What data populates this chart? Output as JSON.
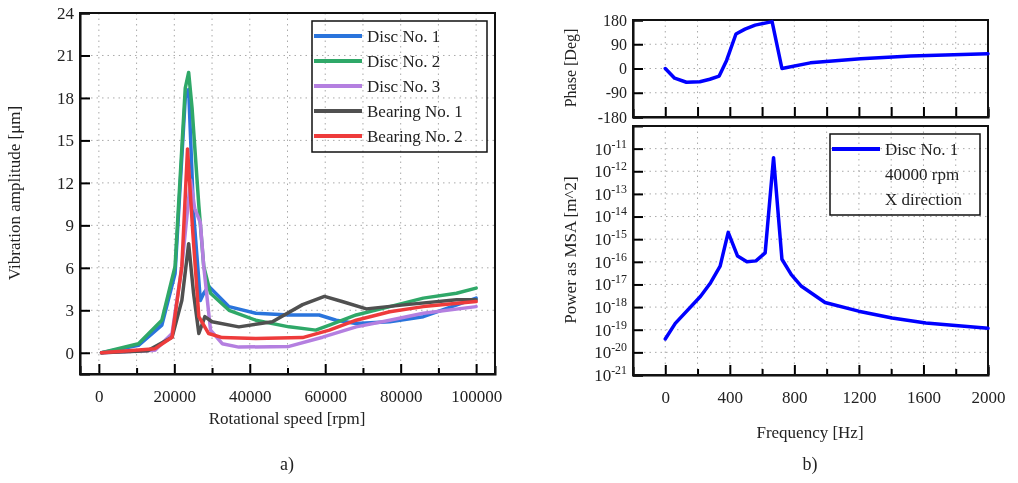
{
  "chart_data": [
    {
      "type": "line",
      "xlabel": "Rotational speed [rpm]",
      "ylabel": "Vibration amplitude [μm]",
      "annotations": [
        "a)"
      ],
      "xlim": [
        -5000,
        105000
      ],
      "ylim": [
        -1.5,
        24
      ],
      "xticks": [
        0,
        {
          "value": 10000,
          "label": null
        },
        20000,
        {
          "value": 30000,
          "label": null
        },
        40000,
        {
          "value": 50000,
          "label": null
        },
        60000,
        {
          "value": 70000,
          "label": null
        },
        80000,
        {
          "value": 90000,
          "label": null
        },
        100000
      ],
      "yticks": [
        0,
        3,
        6,
        9,
        12,
        15,
        18,
        21,
        24
      ],
      "grid": true,
      "legend": "top right",
      "line_style": "solid",
      "series": [
        {
          "name": "Disc No. 1",
          "color": "#2a74dc",
          "x": [
            700,
            10500,
            16700,
            20200,
            22900,
            23800,
            25100,
            26900,
            27800,
            29100,
            34500,
            41600,
            50400,
            58400,
            62900,
            68200,
            77100,
            86000,
            100000
          ],
          "values": [
            0,
            0.52,
            1.95,
            5.6,
            18,
            18.6,
            9.9,
            3.7,
            4.2,
            4.7,
            3.26,
            2.79,
            2.67,
            2.67,
            2.3,
            2.07,
            2.19,
            2.55,
            3.86
          ]
        },
        {
          "name": "Disc No. 2",
          "color": "#2fa868",
          "x": [
            700,
            10500,
            16700,
            20200,
            22900,
            23800,
            24700,
            26500,
            27800,
            29600,
            34500,
            41600,
            50400,
            57500,
            61100,
            68200,
            77100,
            86000,
            94800,
            100000
          ],
          "values": [
            0,
            0.64,
            2.3,
            6.1,
            18.7,
            19.8,
            17.3,
            10.4,
            6.1,
            4.2,
            3.0,
            2.3,
            1.83,
            1.6,
            1.95,
            2.67,
            3.26,
            3.86,
            4.2,
            4.57
          ]
        },
        {
          "name": "Disc No. 3",
          "color": "#b47fe0",
          "x": [
            700,
            14900,
            19400,
            22000,
            24300,
            25400,
            26900,
            27800,
            29600,
            32700,
            37100,
            50400,
            59300,
            68200,
            77100,
            86000,
            100000
          ],
          "values": [
            0,
            0.17,
            1.36,
            6.1,
            12.2,
            10.2,
            9.2,
            6.1,
            1.6,
            0.64,
            0.4,
            0.45,
            1.1,
            1.83,
            2.3,
            2.79,
            3.26
          ]
        },
        {
          "name": "Bearing No. 1",
          "color": "#505050",
          "x": [
            700,
            13000,
            19400,
            22000,
            23800,
            25100,
            26500,
            28100,
            30000,
            37100,
            46000,
            54000,
            59800,
            64700,
            70900,
            81500,
            94800,
            100000
          ],
          "values": [
            0,
            0.15,
            1.1,
            3.7,
            7.7,
            4.2,
            1.36,
            2.55,
            2.19,
            1.83,
            2.19,
            3.4,
            3.98,
            3.6,
            3.1,
            3.4,
            3.74,
            3.74
          ]
        },
        {
          "name": "Bearing No. 2",
          "color": "#ee3b3b",
          "x": [
            700,
            14900,
            19400,
            22000,
            23500,
            24900,
            26500,
            29100,
            32700,
            41600,
            54000,
            61100,
            68200,
            77100,
            86000,
            100000
          ],
          "values": [
            0,
            0.29,
            1.1,
            6.1,
            14.4,
            8.5,
            2.55,
            1.36,
            1.07,
            1.0,
            1.07,
            1.6,
            2.3,
            2.9,
            3.26,
            3.62
          ]
        }
      ]
    },
    {
      "type": "line",
      "ylabel": "Phase [Deg]",
      "xlim": [
        -200,
        2000
      ],
      "ylim": [
        -180,
        180
      ],
      "tick_labels": "y",
      "xticks": [
        0,
        200,
        400,
        600,
        800,
        1000,
        1200,
        1400,
        1600,
        1800,
        2000
      ],
      "yticks": [
        180,
        90,
        0,
        -90,
        -180
      ],
      "grid": true,
      "line_style": "solid",
      "series": [
        {
          "color": "#0000ff",
          "x": [
            0,
            58,
            131,
            214,
            276,
            334,
            380,
            438,
            494,
            557,
            662,
            723,
            899,
            1211,
            1522,
            2000
          ],
          "values": [
            0,
            -36,
            -51,
            -49,
            -40,
            -28,
            30,
            128,
            146,
            161,
            174,
            0,
            21,
            36,
            46,
            55
          ]
        }
      ]
    },
    {
      "type": "line",
      "xlabel": "Frequency [Hz]",
      "ylabel": "Power as MSA [m^2]",
      "annotations": [
        "40000 rpm",
        "X direction",
        "b)"
      ],
      "xlim": [
        -200,
        2000
      ],
      "ylim": [
        1e-21,
        1e-10
      ],
      "log": true,
      "xticks": [
        0,
        {
          "value": 200,
          "label": null
        },
        400,
        {
          "value": 600,
          "label": null
        },
        800,
        {
          "value": 1000,
          "label": null
        },
        1200,
        {
          "value": 1400,
          "label": null
        },
        1600,
        {
          "value": 1800,
          "label": null
        },
        2000
      ],
      "yticks": [
        {
          "value": 1e-21,
          "label": "10$^{-21}$"
        },
        {
          "value": 1e-20,
          "label": "10$^{-20}$"
        },
        {
          "value": 1e-19,
          "label": "10$^{-19}$"
        },
        {
          "value": 1e-18,
          "label": "10$^{-18}$"
        },
        {
          "value": 1e-17,
          "label": "10$^{-17}$"
        },
        {
          "value": 1e-16,
          "label": "10$^{-16}$"
        },
        {
          "value": 1e-15,
          "label": "10$^{-15}$"
        },
        {
          "value": 1e-14,
          "label": "10$^{-14}$"
        },
        {
          "value": 1e-13,
          "label": "10$^{-13}$"
        },
        {
          "value": 1e-12,
          "label": "10$^{-12}$"
        },
        {
          "value": 1e-11,
          "label": "10$^{-11}$"
        }
      ],
      "grid": true,
      "legend": "top right",
      "line_style": "solid",
      "series": [
        {
          "name": "Disc No. 1",
          "color": "#0000ff",
          "x": [
            0,
            62,
            219,
            281,
            340,
            390,
            448,
            506,
            562,
            619,
            671,
            723,
            781,
            844,
            990,
            1198,
            1406,
            1615,
            2000
          ],
          "values": [
            3.9e-20,
            1.9e-19,
            3e-18,
            1.2e-17,
            6.5e-17,
            2e-15,
            1.8e-16,
            1e-16,
            1.1e-16,
            2.5e-16,
            4e-12,
            1.3e-16,
            2.7e-17,
            8.3e-18,
            1.6e-18,
            6.6e-19,
            3.3e-19,
            2e-19,
            1.15e-19
          ]
        }
      ]
    }
  ]
}
